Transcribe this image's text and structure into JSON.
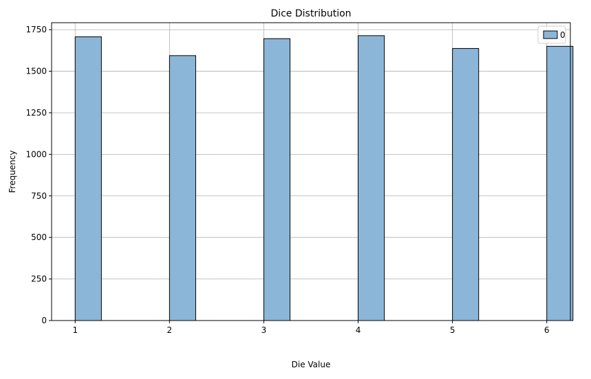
{
  "chart_data": {
    "type": "bar",
    "title": "Dice Distribution",
    "xlabel": "Die Value",
    "ylabel": "Frequency",
    "categories": [
      1,
      2,
      3,
      4,
      5,
      6
    ],
    "series": [
      {
        "name": "0",
        "values": [
          1707,
          1594,
          1696,
          1714,
          1637,
          1650
        ]
      }
    ],
    "xlim": [
      0.75,
      6.25
    ],
    "ylim": [
      0,
      1792
    ],
    "xticks": [
      1,
      2,
      3,
      4,
      5,
      6
    ],
    "yticks": [
      0,
      250,
      500,
      750,
      1000,
      1250,
      1500,
      1750
    ],
    "bar_width": 0.2778,
    "grid": true,
    "legend_position": "top-right",
    "colors": {
      "bar_fill": "#8cb6d8",
      "bar_edge": "#000000",
      "grid": "#b0b0b0"
    }
  }
}
